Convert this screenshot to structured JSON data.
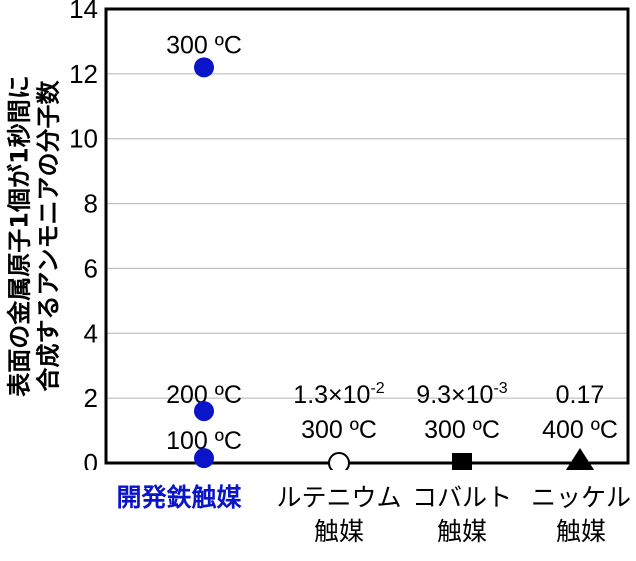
{
  "chart_data": {
    "type": "scatter",
    "title": "",
    "ylabel_lines": [
      "表面の金属原子1個が1秒間に",
      "合成するアンモニアの分子数"
    ],
    "xlabel": "",
    "ylim": [
      0,
      14
    ],
    "yticks": [
      0,
      2,
      4,
      6,
      8,
      10,
      12,
      14
    ],
    "grid": "horizontal",
    "categories": [
      {
        "label_lines": [
          "開発鉄触媒"
        ],
        "highlight": true,
        "color": "#0a14c8"
      },
      {
        "label_lines": [
          "ルテニウム",
          "触媒"
        ],
        "highlight": false,
        "color": "#000000"
      },
      {
        "label_lines": [
          "コバルト",
          "触媒"
        ],
        "highlight": false,
        "color": "#000000"
      },
      {
        "label_lines": [
          "ニッケル",
          "触媒"
        ],
        "highlight": false,
        "color": "#000000"
      }
    ],
    "series": [
      {
        "name": "開発鉄触媒",
        "marker": "circle-filled",
        "color": "#0a14c8",
        "points": [
          {
            "category": 0,
            "value": 12.2,
            "annotation": "300 ºC"
          },
          {
            "category": 0,
            "value": 1.6,
            "annotation": "200 ºC"
          },
          {
            "category": 0,
            "value": 0.15,
            "annotation": "100 ºC"
          }
        ]
      },
      {
        "name": "ルテニウム触媒",
        "marker": "circle-open",
        "color": "#000000",
        "points": [
          {
            "category": 1,
            "value": 0.013,
            "annotation_lines": [
              "1.3×10",
              "-2",
              "300 ºC"
            ]
          }
        ]
      },
      {
        "name": "コバルト触媒",
        "marker": "square-filled",
        "color": "#000000",
        "points": [
          {
            "category": 2,
            "value": 0.0093,
            "annotation_lines": [
              "9.3×10",
              "-3",
              "300 ºC"
            ]
          }
        ]
      },
      {
        "name": "ニッケル触媒",
        "marker": "triangle-filled",
        "color": "#000000",
        "points": [
          {
            "category": 3,
            "value": 0.17,
            "annotation_lines": [
              "0.17",
              "",
              "400 ºC"
            ]
          }
        ]
      }
    ],
    "legend": null
  },
  "labels": {
    "ylabel_line1": "表面の金属原子1個が1秒間に",
    "ylabel_line2": "合成するアンモニアの分子数",
    "cat0_line1": "開発鉄触媒",
    "cat1_line1": "ルテニウム",
    "cat1_line2": "触媒",
    "cat2_line1": "コバルト",
    "cat2_line2": "触媒",
    "cat3_line1": "ニッケル",
    "cat3_line2": "触媒"
  },
  "colors": {
    "accent": "#0a14c8",
    "grid": "#b4b4b4",
    "axis": "#000000"
  }
}
